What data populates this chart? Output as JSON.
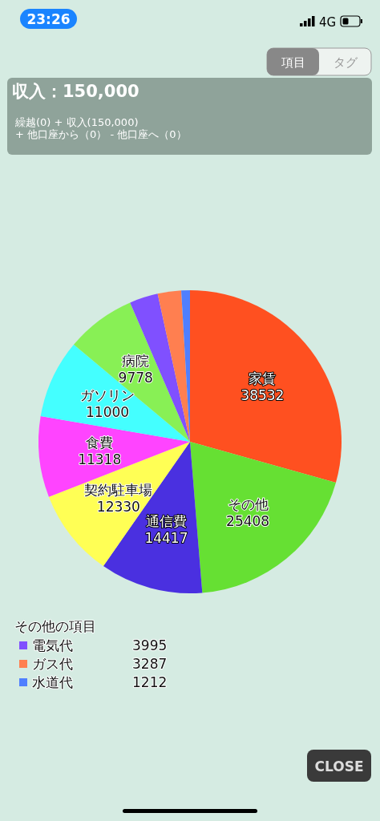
{
  "chart_data": {
    "type": "pie",
    "title": "収入：150,000",
    "subtitle": "繰越(0) + 収入(150,000)",
    "categories": [
      "家賃",
      "その他",
      "通信費",
      "契約駐車場",
      "食費",
      "ガソリン",
      "病院",
      "電気代",
      "ガス代",
      "水道代"
    ],
    "values": [
      38532,
      25408,
      14417,
      12330,
      11318,
      11000,
      9778,
      3995,
      3287,
      1212
    ],
    "colors": [
      "#ff5020",
      "#66e033",
      "#4a30e0",
      "#ffff55",
      "#ff44ff",
      "#44ffff",
      "#88f055",
      "#8050ff",
      "#ff7f50",
      "#4f7fff"
    ],
    "data_labels": true,
    "legend": "bottom left",
    "legend_title": "その他の項目",
    "annotations": [
      "+ 他口座から（0） - 他口座へ（0）",
      "23:26",
      "4G",
      "項目",
      "タグ",
      "CLOSE"
    ]
  }
}
